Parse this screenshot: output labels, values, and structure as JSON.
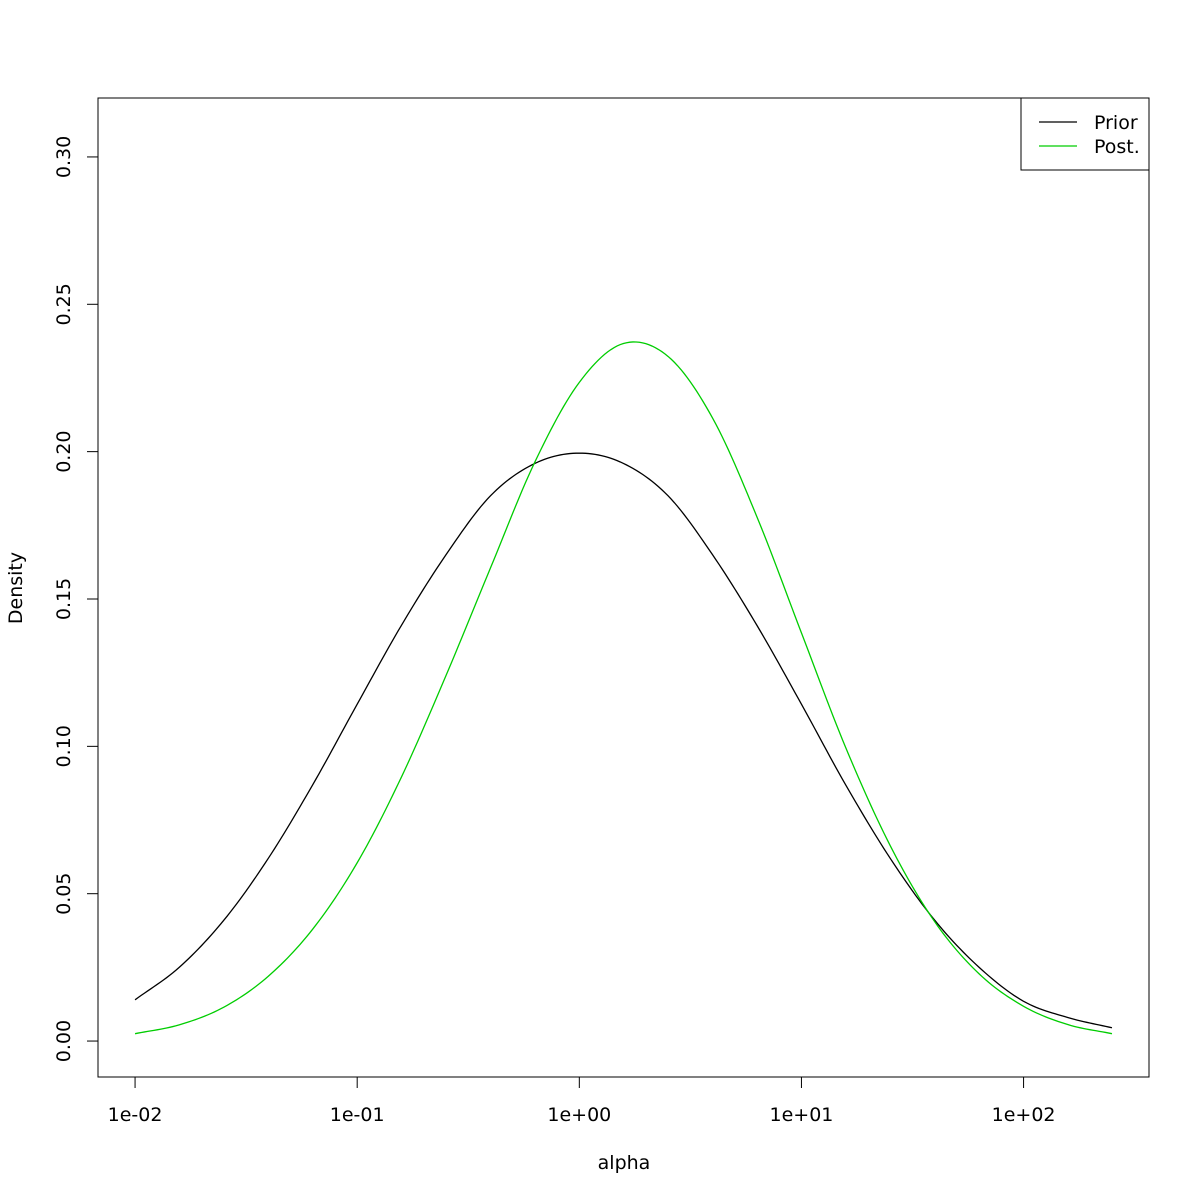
{
  "chart_data": {
    "type": "line",
    "xlabel": "alpha",
    "ylabel": "Density",
    "x_scale": "log",
    "x_range": [
      0.01,
      250
    ],
    "xlim": [
      0.00681,
      367
    ],
    "ylim": [
      -0.0122,
      0.32
    ],
    "x_ticks": [
      {
        "value": 0.01,
        "label": "1e-02"
      },
      {
        "value": 0.1,
        "label": "1e-01"
      },
      {
        "value": 1,
        "label": "1e+00"
      },
      {
        "value": 10,
        "label": "1e+01"
      },
      {
        "value": 100,
        "label": "1e+02"
      }
    ],
    "y_ticks": [
      {
        "value": 0.0,
        "label": "0.00"
      },
      {
        "value": 0.05,
        "label": "0.05"
      },
      {
        "value": 0.1,
        "label": "0.10"
      },
      {
        "value": 0.15,
        "label": "0.15"
      },
      {
        "value": 0.2,
        "label": "0.20"
      },
      {
        "value": 0.25,
        "label": "0.25"
      },
      {
        "value": 0.3,
        "label": "0.30"
      }
    ],
    "series": [
      {
        "name": "Prior",
        "color": "#000000",
        "points": [
          [
            0.01,
            0.014
          ],
          [
            0.0158,
            0.025
          ],
          [
            0.0251,
            0.041
          ],
          [
            0.0398,
            0.062
          ],
          [
            0.0631,
            0.087
          ],
          [
            0.1,
            0.1143
          ],
          [
            0.158,
            0.141
          ],
          [
            0.251,
            0.165
          ],
          [
            0.398,
            0.185
          ],
          [
            0.631,
            0.196
          ],
          [
            1.0,
            0.1995
          ],
          [
            1.58,
            0.196
          ],
          [
            2.51,
            0.185
          ],
          [
            3.98,
            0.165
          ],
          [
            6.31,
            0.141
          ],
          [
            10.0,
            0.1143
          ],
          [
            15.8,
            0.087
          ],
          [
            25.1,
            0.062
          ],
          [
            39.8,
            0.041
          ],
          [
            63.1,
            0.025
          ],
          [
            100,
            0.0135
          ],
          [
            158,
            0.008
          ],
          [
            250,
            0.0045
          ]
        ]
      },
      {
        "name": "Post.",
        "color": "#00cd00",
        "points": [
          [
            0.01,
            0.0025
          ],
          [
            0.0158,
            0.0055
          ],
          [
            0.0251,
            0.0115
          ],
          [
            0.0398,
            0.022
          ],
          [
            0.0631,
            0.038
          ],
          [
            0.1,
            0.0605
          ],
          [
            0.158,
            0.0895
          ],
          [
            0.251,
            0.124
          ],
          [
            0.398,
            0.1605
          ],
          [
            0.631,
            0.1965
          ],
          [
            1.0,
            0.2235
          ],
          [
            1.58,
            0.2367
          ],
          [
            2.51,
            0.2323
          ],
          [
            3.98,
            0.2114
          ],
          [
            6.31,
            0.1778
          ],
          [
            10.0,
            0.1385
          ],
          [
            15.8,
            0.0997
          ],
          [
            25.1,
            0.0663
          ],
          [
            39.8,
            0.0405
          ],
          [
            63.1,
            0.0228
          ],
          [
            100,
            0.0118
          ],
          [
            158,
            0.0056
          ],
          [
            250,
            0.0025
          ]
        ]
      }
    ],
    "legend": {
      "position": "top-right",
      "entries": [
        {
          "label": "Prior",
          "color": "#000000"
        },
        {
          "label": "Post.",
          "color": "#00cd00"
        }
      ]
    },
    "grid": false
  }
}
